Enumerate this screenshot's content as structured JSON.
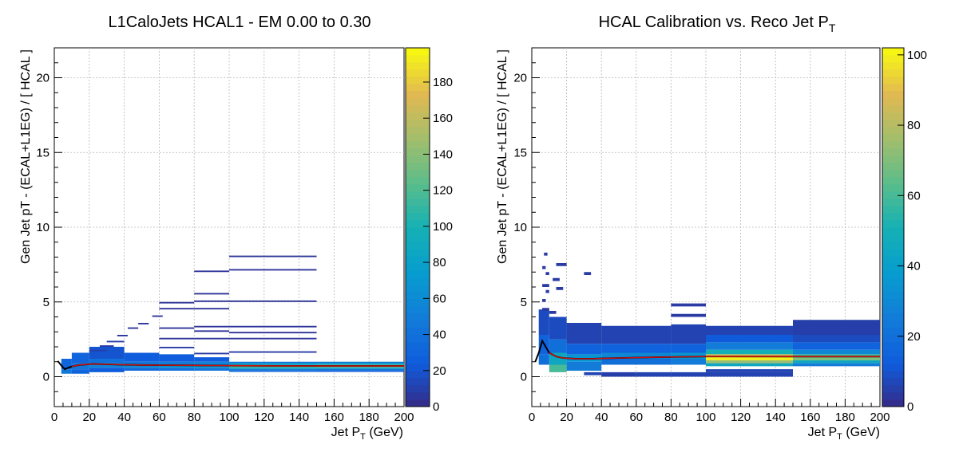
{
  "chart_data": [
    {
      "type": "heatmap",
      "title": "L1CaloJets HCAL1 - EM 0.00 to 0.30",
      "xlabel_main": "Jet P",
      "xlabel_sub": "T",
      "xlabel_unit": " (GeV)",
      "ylabel": "Gen Jet pT - (ECAL+L1EG) / [ HCAL ]",
      "xlim": [
        0,
        200
      ],
      "ylim": [
        -2,
        22
      ],
      "xticks": [
        0,
        20,
        40,
        60,
        80,
        100,
        120,
        140,
        160,
        180,
        200
      ],
      "yticks": [
        0,
        5,
        10,
        15,
        20
      ],
      "zlim": [
        0,
        199
      ],
      "zticks": [
        0,
        20,
        40,
        60,
        80,
        100,
        120,
        140,
        160,
        180
      ],
      "grid": true,
      "profile_line": [
        [
          2,
          1.05
        ],
        [
          4,
          0.75
        ],
        [
          6,
          0.5
        ],
        [
          8,
          0.6
        ],
        [
          10,
          0.68
        ],
        [
          14,
          0.78
        ],
        [
          18,
          0.82
        ],
        [
          22,
          0.85
        ],
        [
          30,
          0.83
        ],
        [
          40,
          0.8
        ],
        [
          50,
          0.78
        ],
        [
          60,
          0.77
        ],
        [
          80,
          0.76
        ],
        [
          100,
          0.74
        ],
        [
          120,
          0.73
        ],
        [
          150,
          0.72
        ],
        [
          200,
          0.72
        ]
      ],
      "cells": [
        [
          100,
          150,
          0.92,
          1.0,
          40
        ],
        [
          100,
          150,
          0.82,
          0.92,
          70
        ],
        [
          100,
          150,
          0.72,
          0.82,
          95
        ],
        [
          100,
          150,
          0.62,
          0.72,
          120
        ],
        [
          100,
          150,
          0.52,
          0.62,
          85
        ],
        [
          100,
          150,
          0.42,
          0.52,
          50
        ],
        [
          100,
          150,
          0.32,
          0.42,
          30
        ],
        [
          150,
          200,
          0.92,
          1.0,
          40
        ],
        [
          150,
          200,
          0.82,
          0.92,
          75
        ],
        [
          150,
          200,
          0.72,
          0.82,
          110
        ],
        [
          150,
          200,
          0.62,
          0.72,
          135
        ],
        [
          150,
          200,
          0.52,
          0.62,
          80
        ],
        [
          150,
          200,
          0.42,
          0.52,
          45
        ],
        [
          150,
          200,
          0.32,
          0.42,
          25
        ],
        [
          80,
          100,
          1.0,
          1.3,
          25
        ],
        [
          80,
          100,
          0.8,
          1.0,
          55
        ],
        [
          80,
          100,
          0.6,
          0.8,
          75
        ],
        [
          80,
          100,
          0.4,
          0.6,
          45
        ],
        [
          60,
          80,
          1.0,
          1.5,
          25
        ],
        [
          60,
          80,
          0.8,
          1.0,
          50
        ],
        [
          60,
          80,
          0.6,
          0.8,
          70
        ],
        [
          60,
          80,
          0.4,
          0.6,
          40
        ],
        [
          40,
          60,
          1.0,
          1.6,
          25
        ],
        [
          40,
          60,
          0.8,
          1.0,
          45
        ],
        [
          40,
          60,
          0.6,
          0.8,
          60
        ],
        [
          40,
          60,
          0.4,
          0.6,
          35
        ],
        [
          20,
          40,
          1.2,
          2.0,
          20
        ],
        [
          20,
          40,
          0.9,
          1.2,
          40
        ],
        [
          20,
          40,
          0.6,
          0.9,
          55
        ],
        [
          20,
          40,
          0.3,
          0.6,
          25
        ],
        [
          10,
          20,
          0.9,
          1.6,
          30
        ],
        [
          10,
          20,
          0.5,
          0.9,
          45
        ],
        [
          10,
          20,
          0.2,
          0.5,
          30
        ],
        [
          4,
          10,
          0.5,
          1.2,
          30
        ],
        [
          4,
          10,
          0.2,
          0.5,
          45
        ],
        [
          100,
          150,
          8.0,
          8.1,
          5
        ],
        [
          100,
          150,
          7.1,
          7.2,
          5
        ],
        [
          100,
          150,
          5.0,
          5.1,
          5
        ],
        [
          100,
          150,
          3.3,
          3.4,
          5
        ],
        [
          100,
          150,
          2.9,
          3.0,
          5
        ],
        [
          100,
          150,
          2.5,
          2.6,
          5
        ],
        [
          100,
          150,
          1.6,
          1.7,
          8
        ],
        [
          80,
          100,
          7.0,
          7.1,
          5
        ],
        [
          80,
          100,
          5.5,
          5.6,
          5
        ],
        [
          80,
          100,
          5.0,
          5.1,
          5
        ],
        [
          80,
          100,
          4.5,
          4.6,
          5
        ],
        [
          80,
          100,
          3.3,
          3.4,
          5
        ],
        [
          80,
          100,
          3.0,
          3.1,
          5
        ],
        [
          80,
          100,
          2.5,
          2.6,
          5
        ],
        [
          80,
          100,
          1.5,
          1.6,
          8
        ],
        [
          60,
          80,
          4.9,
          5.0,
          5
        ],
        [
          60,
          80,
          4.5,
          4.6,
          5
        ],
        [
          60,
          80,
          3.2,
          3.3,
          5
        ],
        [
          60,
          80,
          2.5,
          2.6,
          5
        ],
        [
          60,
          80,
          1.9,
          2.0,
          8
        ],
        [
          56,
          62,
          4.0,
          4.1,
          5
        ],
        [
          48,
          54,
          3.5,
          3.6,
          5
        ],
        [
          42,
          48,
          3.2,
          3.3,
          5
        ],
        [
          36,
          42,
          2.7,
          2.8,
          5
        ],
        [
          30,
          40,
          2.3,
          2.4,
          8
        ],
        [
          26,
          34,
          2.0,
          2.1,
          8
        ],
        [
          20,
          30,
          1.7,
          1.8,
          10
        ]
      ]
    },
    {
      "type": "heatmap",
      "title_main": "HCAL Calibration vs. Reco Jet P",
      "title_sub": "T",
      "xlabel_main": "Jet P",
      "xlabel_sub": "T",
      "xlabel_unit": " (GeV)",
      "ylabel": "Gen Jet pT - (ECAL+L1EG) / [ HCAL ]",
      "xlim": [
        0,
        200
      ],
      "ylim": [
        -2,
        22
      ],
      "xticks": [
        0,
        20,
        40,
        60,
        80,
        100,
        120,
        140,
        160,
        180,
        200
      ],
      "yticks": [
        0,
        5,
        10,
        15,
        20
      ],
      "zlim": [
        0,
        102
      ],
      "zticks": [
        0,
        20,
        40,
        60,
        80,
        100
      ],
      "grid": true,
      "profile_line": [
        [
          2,
          1.0
        ],
        [
          4,
          1.6
        ],
        [
          6,
          2.4
        ],
        [
          8,
          2.0
        ],
        [
          10,
          1.6
        ],
        [
          14,
          1.35
        ],
        [
          18,
          1.25
        ],
        [
          25,
          1.2
        ],
        [
          35,
          1.2
        ],
        [
          50,
          1.25
        ],
        [
          70,
          1.3
        ],
        [
          100,
          1.35
        ],
        [
          150,
          1.35
        ],
        [
          200,
          1.35
        ]
      ],
      "cells": [
        [
          100,
          150,
          1.3,
          1.5,
          90
        ],
        [
          100,
          150,
          1.1,
          1.3,
          100
        ],
        [
          100,
          150,
          0.9,
          1.1,
          75
        ],
        [
          100,
          150,
          0.7,
          0.9,
          45
        ],
        [
          100,
          150,
          1.5,
          1.8,
          50
        ],
        [
          100,
          150,
          1.8,
          2.3,
          25
        ],
        [
          100,
          150,
          2.3,
          2.8,
          12
        ],
        [
          100,
          150,
          2.8,
          3.4,
          6
        ],
        [
          150,
          200,
          1.3,
          1.5,
          60
        ],
        [
          150,
          200,
          1.1,
          1.3,
          70
        ],
        [
          150,
          200,
          0.9,
          1.1,
          45
        ],
        [
          150,
          200,
          0.7,
          0.9,
          25
        ],
        [
          150,
          200,
          1.5,
          1.8,
          30
        ],
        [
          150,
          200,
          1.8,
          2.3,
          15
        ],
        [
          150,
          200,
          2.3,
          2.8,
          8
        ],
        [
          150,
          200,
          2.8,
          3.8,
          5
        ],
        [
          80,
          100,
          1.2,
          1.6,
          35
        ],
        [
          80,
          100,
          0.8,
          1.2,
          25
        ],
        [
          80,
          100,
          1.6,
          2.2,
          15
        ],
        [
          80,
          100,
          2.2,
          3.5,
          6
        ],
        [
          80,
          100,
          4.7,
          4.9,
          4
        ],
        [
          80,
          100,
          4.0,
          4.2,
          4
        ],
        [
          40,
          80,
          1.2,
          1.6,
          30
        ],
        [
          40,
          80,
          0.8,
          1.2,
          20
        ],
        [
          40,
          80,
          1.6,
          2.2,
          15
        ],
        [
          40,
          80,
          2.2,
          3.4,
          6
        ],
        [
          20,
          40,
          1.0,
          1.5,
          35
        ],
        [
          20,
          40,
          0.4,
          1.0,
          25
        ],
        [
          20,
          40,
          1.5,
          2.2,
          15
        ],
        [
          20,
          40,
          2.2,
          3.6,
          6
        ],
        [
          10,
          20,
          0.8,
          1.6,
          45
        ],
        [
          10,
          20,
          0.3,
          0.8,
          60
        ],
        [
          10,
          20,
          1.6,
          2.5,
          20
        ],
        [
          10,
          20,
          2.5,
          4.0,
          8
        ],
        [
          4,
          10,
          1.5,
          2.8,
          15
        ],
        [
          4,
          10,
          2.8,
          4.5,
          8
        ],
        [
          4,
          10,
          0.8,
          1.5,
          20
        ],
        [
          100,
          150,
          0.0,
          0.3,
          6
        ],
        [
          100,
          150,
          0.3,
          0.5,
          6
        ],
        [
          80,
          100,
          0.0,
          0.3,
          6
        ],
        [
          60,
          80,
          0.0,
          0.3,
          6
        ],
        [
          40,
          60,
          0.0,
          0.3,
          5
        ],
        [
          30,
          40,
          0.1,
          0.3,
          6
        ],
        [
          7,
          9,
          8.1,
          8.3,
          4
        ],
        [
          6,
          8,
          7.2,
          7.4,
          4
        ],
        [
          14,
          20,
          7.4,
          7.6,
          4
        ],
        [
          30,
          34,
          6.8,
          7.0,
          4
        ],
        [
          8,
          10,
          6.8,
          7.0,
          4
        ],
        [
          12,
          16,
          6.4,
          6.6,
          4
        ],
        [
          6,
          10,
          6.0,
          6.2,
          4
        ],
        [
          14,
          18,
          5.8,
          6.0,
          4
        ],
        [
          8,
          10,
          5.6,
          5.8,
          4
        ],
        [
          6,
          8,
          5.0,
          5.2,
          4
        ],
        [
          6,
          10,
          4.4,
          4.6,
          4
        ],
        [
          10,
          14,
          4.2,
          4.4,
          4
        ]
      ]
    }
  ]
}
